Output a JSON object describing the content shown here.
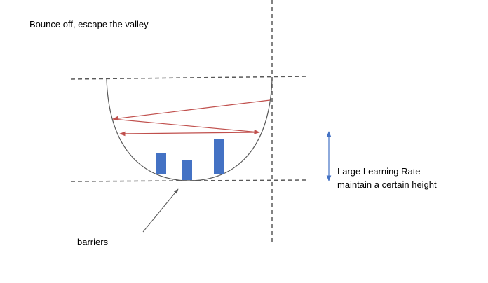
{
  "title": "Bounce off, escape the valley",
  "annotation": {
    "line1": "Large Learning Rate",
    "line2": "maintain a certain height"
  },
  "barriers_label": "barriers",
  "colors": {
    "bowl_outline": "#595959",
    "dashed_lines": "#595959",
    "trajectory_arrows": "#C0504D",
    "barriers": "#4472C4",
    "height_arrow": "#4472C4",
    "pointer_arrow": "#595959"
  },
  "icons": {
    "trajectory": "red-zigzag-arrows",
    "height_indicator": "double-headed-vertical-arrow",
    "pointer": "diagonal-pointer-arrow"
  }
}
